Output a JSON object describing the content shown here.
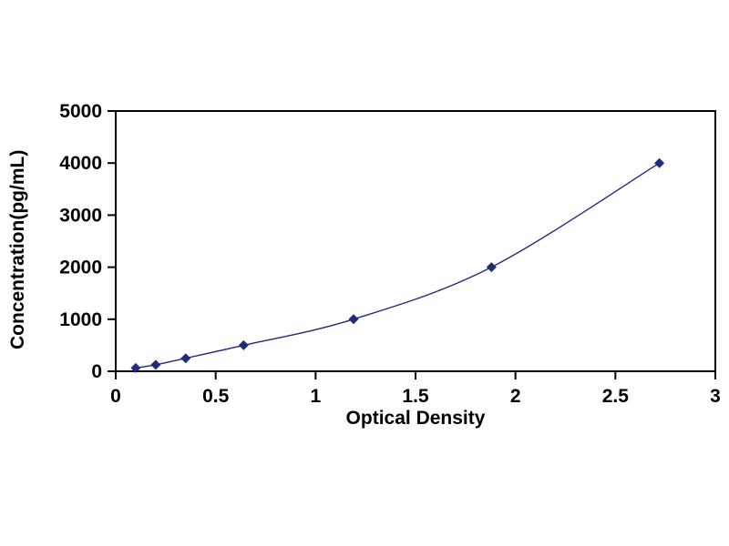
{
  "chart_data": {
    "type": "line",
    "title": "",
    "xlabel": "Optical Density",
    "ylabel": "Concentration(pg/mL)",
    "x": [
      0.1,
      0.2,
      0.35,
      0.64,
      1.19,
      1.88,
      2.72
    ],
    "y": [
      62.5,
      125,
      250,
      500,
      1000,
      2000,
      4000
    ],
    "xlim": [
      0,
      3
    ],
    "ylim": [
      0,
      5000
    ],
    "xticks": [
      0,
      0.5,
      1,
      1.5,
      2,
      2.5,
      3
    ],
    "xtick_labels": [
      "0",
      "0.5",
      "1",
      "1.5",
      "2",
      "2.5",
      "3"
    ],
    "yticks": [
      0,
      1000,
      2000,
      3000,
      4000,
      5000
    ],
    "ytick_labels": [
      "0",
      "1000",
      "2000",
      "3000",
      "4000",
      "5000"
    ],
    "line_color": "#1f2c7c",
    "marker": "diamond",
    "marker_color": "#1f2c7c",
    "axis_color": "#000000",
    "grid": false,
    "legend": "none"
  }
}
